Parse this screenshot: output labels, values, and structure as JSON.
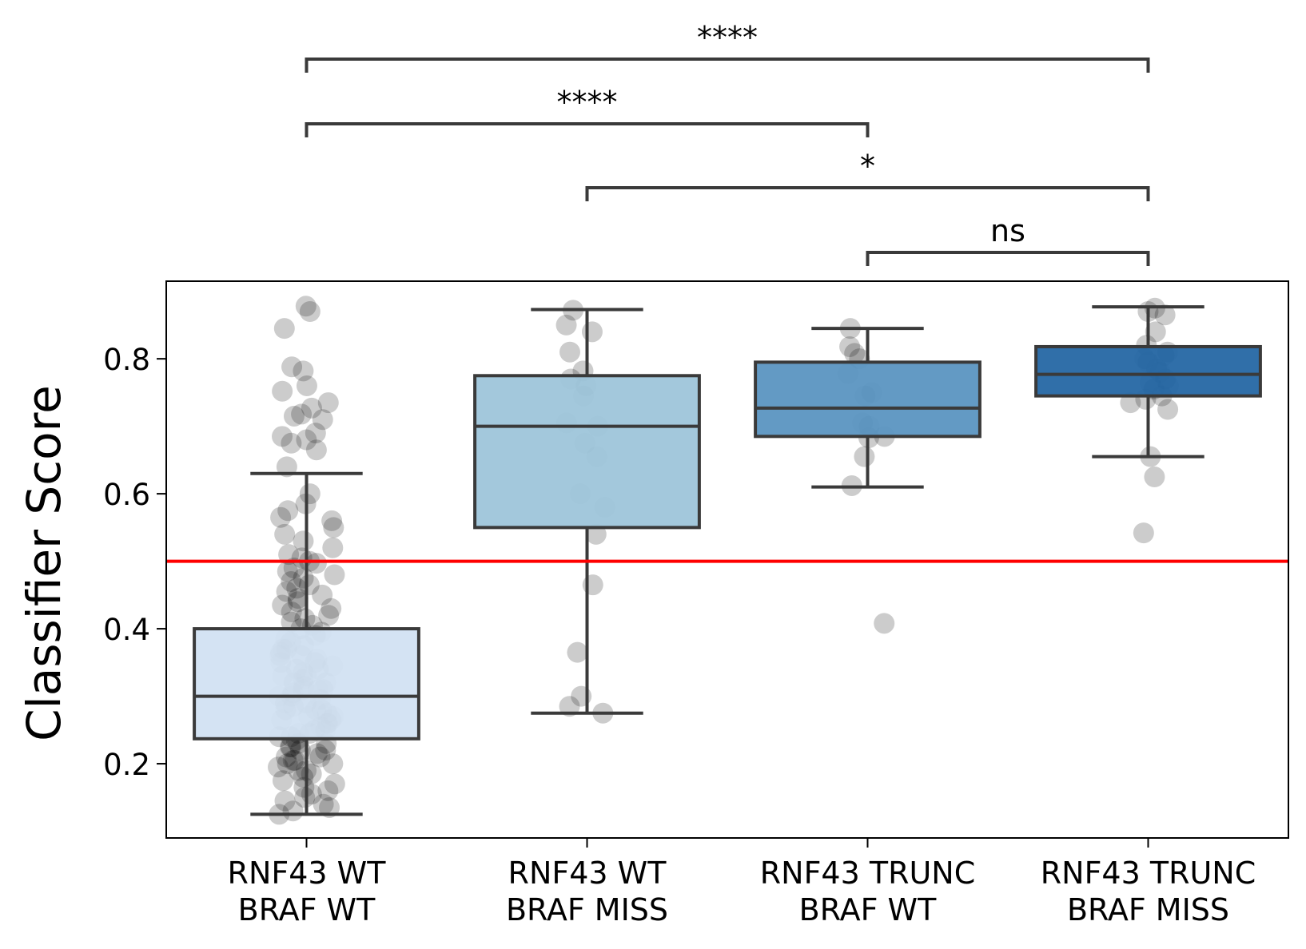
{
  "chart_data": {
    "type": "box",
    "ylabel": "Classifier Score",
    "xlabel": "",
    "ylim": [
      0.09,
      0.915
    ],
    "yticks": [
      0.2,
      0.4,
      0.6,
      0.8
    ],
    "ytick_labels": [
      "0.2",
      "0.4",
      "0.6",
      "0.8"
    ],
    "threshold": {
      "value": 0.5,
      "color": "#ff0000"
    },
    "colors": {
      "box_edge": "#3a3a3a",
      "points": "#000000",
      "fills": [
        "#d2e2f2",
        "#9ec5da",
        "#5b95c1",
        "#2567a4"
      ]
    },
    "categories": [
      {
        "line1": "RNF43 WT",
        "line2": "BRAF WT"
      },
      {
        "line1": "RNF43 WT",
        "line2": "BRAF MISS"
      },
      {
        "line1": "RNF43 TRUNC",
        "line2": "BRAF WT"
      },
      {
        "line1": "RNF43 TRUNC",
        "line2": "BRAF MISS"
      }
    ],
    "boxes": [
      {
        "whisker_low": 0.125,
        "q1": 0.237,
        "median": 0.3,
        "q3": 0.4,
        "whisker_high": 0.63
      },
      {
        "whisker_low": 0.275,
        "q1": 0.55,
        "median": 0.7,
        "q3": 0.775,
        "whisker_high": 0.873
      },
      {
        "whisker_low": 0.61,
        "q1": 0.685,
        "median": 0.727,
        "q3": 0.795,
        "whisker_high": 0.845
      },
      {
        "whisker_low": 0.655,
        "q1": 0.745,
        "median": 0.777,
        "q3": 0.818,
        "whisker_high": 0.877
      }
    ],
    "points": [
      [
        0.878,
        0.87,
        0.845,
        0.788,
        0.782,
        0.76,
        0.752,
        0.735,
        0.727,
        0.718,
        0.715,
        0.71,
        0.69,
        0.685,
        0.68,
        0.675,
        0.665,
        0.64,
        0.6,
        0.585,
        0.575,
        0.565,
        0.56,
        0.55,
        0.54,
        0.53,
        0.52,
        0.51,
        0.505,
        0.5,
        0.497,
        0.49,
        0.485,
        0.48,
        0.475,
        0.47,
        0.465,
        0.46,
        0.455,
        0.45,
        0.445,
        0.44,
        0.435,
        0.43,
        0.425,
        0.42,
        0.415,
        0.41,
        0.405,
        0.4,
        0.395,
        0.39,
        0.385,
        0.38,
        0.375,
        0.37,
        0.365,
        0.36,
        0.355,
        0.35,
        0.345,
        0.34,
        0.335,
        0.33,
        0.325,
        0.32,
        0.315,
        0.31,
        0.305,
        0.3,
        0.295,
        0.29,
        0.285,
        0.28,
        0.275,
        0.27,
        0.265,
        0.26,
        0.255,
        0.25,
        0.245,
        0.24,
        0.235,
        0.23,
        0.225,
        0.22,
        0.215,
        0.21,
        0.205,
        0.2,
        0.195,
        0.19,
        0.185,
        0.18,
        0.175,
        0.17,
        0.165,
        0.16,
        0.155,
        0.15,
        0.145,
        0.14,
        0.135,
        0.13,
        0.125,
        0.37,
        0.34,
        0.31,
        0.28,
        0.26,
        0.24,
        0.22,
        0.2,
        0.36,
        0.33,
        0.3,
        0.27,
        0.25,
        0.23,
        0.21,
        0.19,
        0.35,
        0.32,
        0.29,
        0.265,
        0.245,
        0.225,
        0.205,
        0.31,
        0.28
      ],
      [
        0.872,
        0.85,
        0.84,
        0.81,
        0.782,
        0.77,
        0.76,
        0.745,
        0.705,
        0.7,
        0.675,
        0.655,
        0.6,
        0.58,
        0.54,
        0.465,
        0.365,
        0.3,
        0.285,
        0.275
      ],
      [
        0.845,
        0.818,
        0.808,
        0.8,
        0.778,
        0.75,
        0.745,
        0.705,
        0.7,
        0.685,
        0.683,
        0.655,
        0.612,
        0.408
      ],
      [
        0.875,
        0.87,
        0.865,
        0.84,
        0.82,
        0.81,
        0.805,
        0.8,
        0.795,
        0.785,
        0.78,
        0.77,
        0.765,
        0.76,
        0.755,
        0.745,
        0.74,
        0.735,
        0.725,
        0.655,
        0.625,
        0.542
      ]
    ],
    "significance": [
      {
        "from": 0,
        "to": 3,
        "label": "****",
        "level": 4
      },
      {
        "from": 0,
        "to": 2,
        "label": "****",
        "level": 3
      },
      {
        "from": 1,
        "to": 3,
        "label": "*",
        "level": 2
      },
      {
        "from": 2,
        "to": 3,
        "label": "ns",
        "level": 1
      }
    ]
  }
}
